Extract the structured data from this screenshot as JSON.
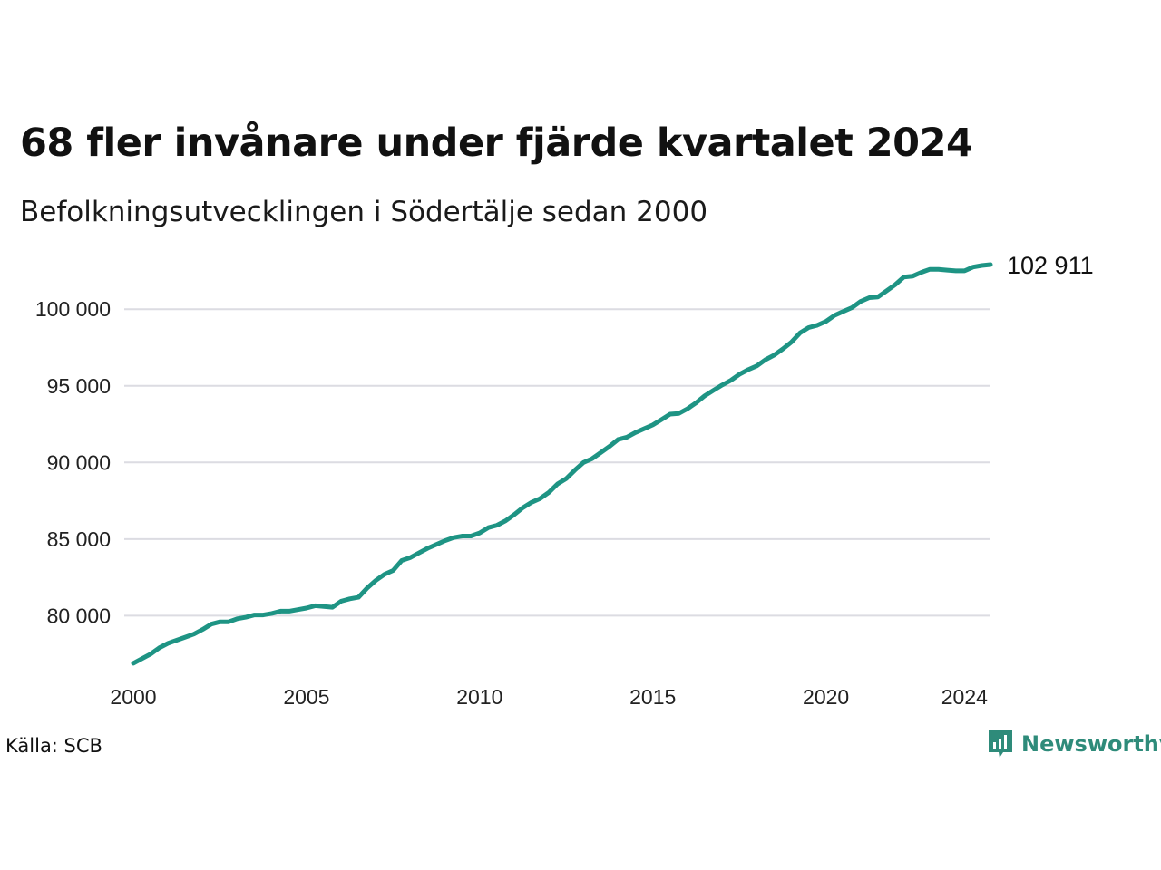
{
  "title": "68 fler invånare under fjärde kvartalet 2024",
  "subtitle": "Befolkningsutvecklingen i Södertälje sedan 2000",
  "source": "Källa: SCB",
  "brand": "Newsworthy",
  "colors": {
    "line": "#1e9484",
    "grid": "#dcdce2",
    "brand": "#2e8b7a"
  },
  "chart_data": {
    "type": "line",
    "title": "68 fler invånare under fjärde kvartalet 2024",
    "subtitle": "Befolkningsutvecklingen i Södertälje sedan 2000",
    "xlim": [
      2000,
      2024.75
    ],
    "ylim": [
      76300,
      103500
    ],
    "yticks": [
      80000,
      85000,
      90000,
      95000,
      100000
    ],
    "ytick_labels": [
      "80 000",
      "85 000",
      "90 000",
      "95 000",
      "100 000"
    ],
    "xticks": [
      2000,
      2005,
      2010,
      2015,
      2020,
      2024
    ],
    "xtick_labels": [
      "2000",
      "2005",
      "2010",
      "2015",
      "2020",
      "2024"
    ],
    "grid": "horizontal",
    "end_label": "102 911",
    "series": [
      {
        "x": [
          2000,
          2000.25,
          2000.5,
          2000.75,
          2001,
          2001.25,
          2001.5,
          2001.75,
          2002,
          2002.25,
          2002.5,
          2002.75,
          2003,
          2003.25,
          2003.5,
          2003.75,
          2004,
          2004.25,
          2004.5,
          2004.75,
          2005,
          2005.25,
          2005.5,
          2005.75,
          2006,
          2006.25,
          2006.5,
          2006.75,
          2007,
          2007.25,
          2007.5,
          2007.75,
          2008,
          2008.25,
          2008.5,
          2008.75,
          2009,
          2009.25,
          2009.5,
          2009.75,
          2010,
          2010.25,
          2010.5,
          2010.75,
          2011,
          2011.25,
          2011.5,
          2011.75,
          2012,
          2012.25,
          2012.5,
          2012.75,
          2013,
          2013.25,
          2013.5,
          2013.75,
          2014,
          2014.25,
          2014.5,
          2014.75,
          2015,
          2015.25,
          2015.5,
          2015.75,
          2016,
          2016.25,
          2016.5,
          2016.75,
          2017,
          2017.25,
          2017.5,
          2017.75,
          2018,
          2018.25,
          2018.5,
          2018.75,
          2019,
          2019.25,
          2019.5,
          2019.75,
          2020,
          2020.25,
          2020.5,
          2020.75,
          2021,
          2021.25,
          2021.5,
          2021.75,
          2022,
          2022.25,
          2022.5,
          2022.75,
          2023,
          2023.25,
          2023.5,
          2023.75,
          2024,
          2024.25,
          2024.5,
          2024.75
        ],
        "values": [
          76900,
          77200,
          77500,
          77900,
          78200,
          78400,
          78600,
          78800,
          79100,
          79450,
          79600,
          79600,
          79800,
          79900,
          80050,
          80050,
          80150,
          80300,
          80300,
          80400,
          80500,
          80650,
          80600,
          80550,
          80950,
          81100,
          81200,
          81800,
          82300,
          82700,
          82950,
          83600,
          83800,
          84100,
          84400,
          84650,
          84900,
          85100,
          85200,
          85200,
          85400,
          85750,
          85900,
          86200,
          86600,
          87050,
          87400,
          87650,
          88050,
          88600,
          88950,
          89500,
          90000,
          90250,
          90650,
          91050,
          91500,
          91650,
          91950,
          92200,
          92450,
          92800,
          93150,
          93200,
          93500,
          93900,
          94350,
          94700,
          95050,
          95350,
          95750,
          96050,
          96300,
          96700,
          97000,
          97400,
          97850,
          98450,
          98800,
          98950,
          99200,
          99600,
          99850,
          100100,
          100500,
          100750,
          100800,
          101200,
          101600,
          102100,
          102150,
          102400,
          102600,
          102600,
          102550,
          102500,
          102500,
          102750,
          102850,
          102911
        ]
      }
    ]
  }
}
